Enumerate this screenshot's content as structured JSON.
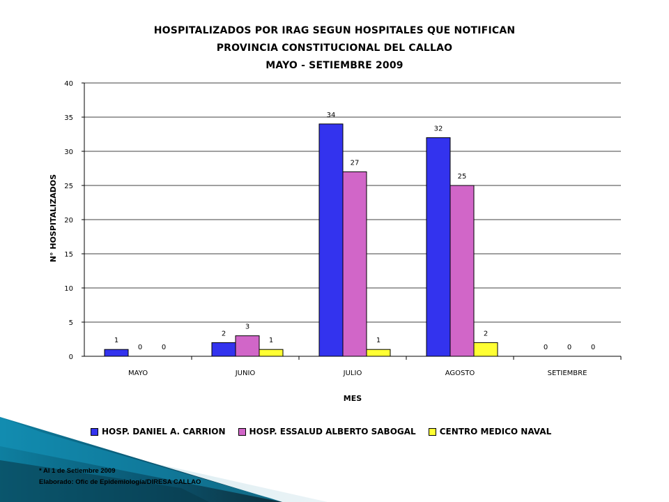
{
  "chart_data": {
    "type": "bar",
    "title_lines": [
      "HOSPITALIZADOS POR IRAG SEGUN HOSPITALES QUE NOTIFICAN",
      "PROVINCIA CONSTITUCIONAL DEL CALLAO",
      "MAYO - SETIEMBRE 2009"
    ],
    "xlabel": "MES",
    "ylabel": "N° HOSPITALIZADOS",
    "categories": [
      "MAYO",
      "JUNIO",
      "JULIO",
      "AGOSTO",
      "SETIEMBRE"
    ],
    "ylim": [
      0,
      40
    ],
    "yticks": [
      "0",
      "5",
      "10",
      "15",
      "20",
      "25",
      "30",
      "35",
      "40"
    ],
    "grid": true,
    "legend_position": "bottom",
    "series": [
      {
        "name": "HOSP. DANIEL A. CARRION",
        "values": [
          1,
          2,
          34,
          32,
          0
        ],
        "color": "#3333ee"
      },
      {
        "name": "HOSP. ESSALUD ALBERTO SABOGAL",
        "values": [
          0,
          3,
          27,
          25,
          0
        ],
        "color": "#d166c8"
      },
      {
        "name": "CENTRO MEDICO NAVAL",
        "values": [
          0,
          1,
          1,
          2,
          0
        ],
        "color": "#ffff33"
      }
    ]
  },
  "footnotes": {
    "line1": "* Al 1 de Setiembre 2009",
    "line2": "Elaborado: Ofic de Epidemiología/DIRESA CALLAO"
  }
}
